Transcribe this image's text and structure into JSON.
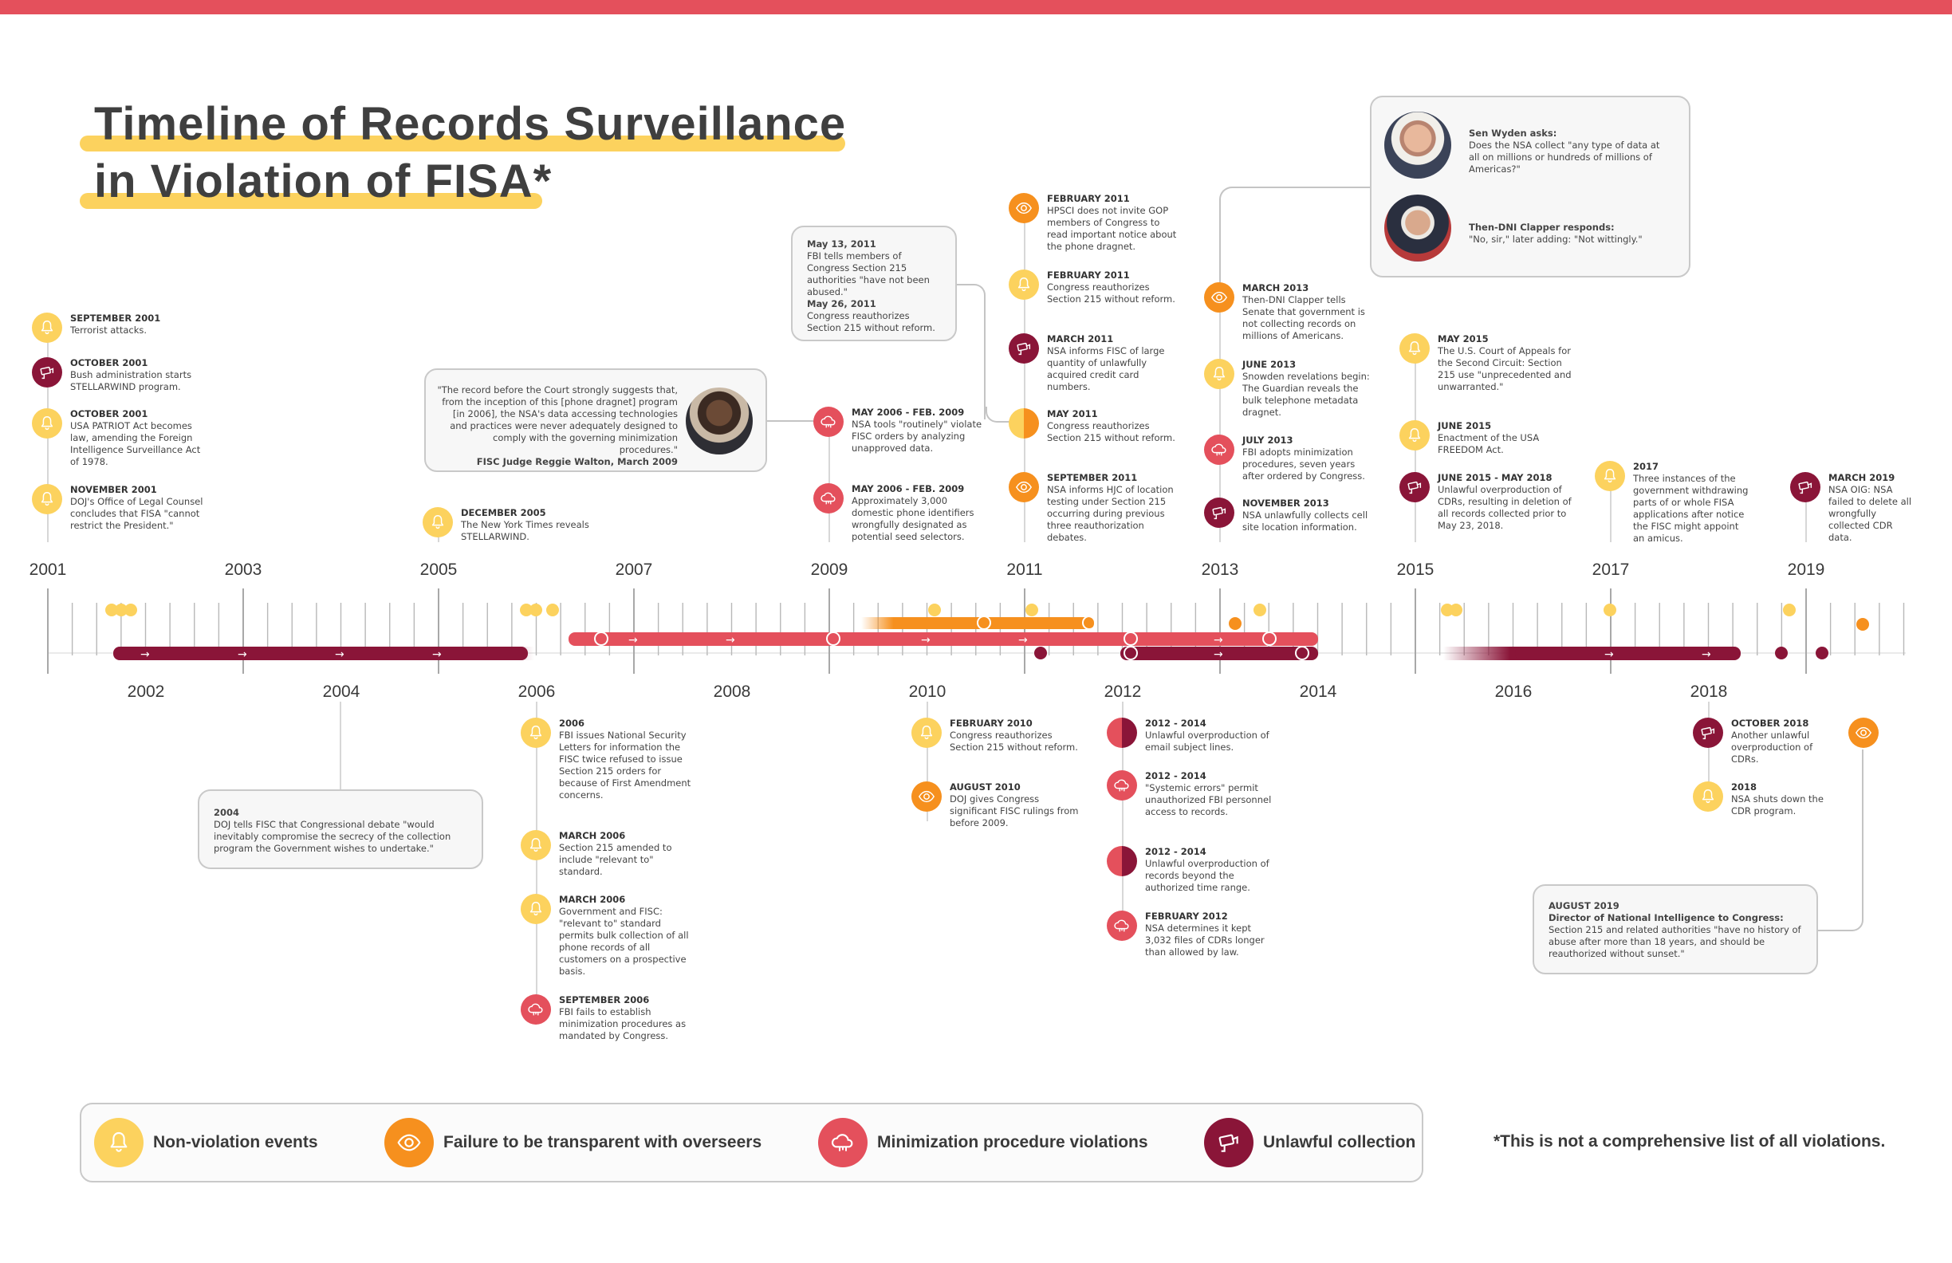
{
  "title": {
    "line1": "Timeline of Records Surveillance",
    "line2": "in Violation of FISA*"
  },
  "colors": {
    "non_violation": "#fcd25e",
    "transparency": "#f6901e",
    "minimization": "#e4505c",
    "unlawful": "#8a1538",
    "accent_top": "#e4505c"
  },
  "years_top": [
    "2001",
    "2003",
    "2005",
    "2007",
    "2009",
    "2011",
    "2013",
    "2015",
    "2017",
    "2019"
  ],
  "years_bottom": [
    "2002",
    "2004",
    "2006",
    "2008",
    "2010",
    "2012",
    "2014",
    "2016",
    "2018"
  ],
  "events_top": [
    {
      "type": "non-violation",
      "date": "SEPTEMBER 2001",
      "text": "Terrorist attacks."
    },
    {
      "type": "unlawful",
      "date": "OCTOBER 2001",
      "text": "Bush administration starts STELLARWIND program."
    },
    {
      "type": "non-violation",
      "date": "OCTOBER 2001",
      "text": "USA PATRIOT Act becomes law, amending the Foreign Intelligence Surveillance Act of 1978."
    },
    {
      "type": "non-violation",
      "date": "NOVEMBER 2001",
      "text": "DOJ's Office of Legal Counsel concludes that FISA \"cannot restrict the President.\""
    },
    {
      "type": "non-violation",
      "date": "DECEMBER 2005",
      "text": "The New York Times reveals STELLARWIND."
    },
    {
      "type": "minimization",
      "date": "MAY 2006 - FEB. 2009",
      "text": "NSA tools \"routinely\" violate FISC orders by analyzing unapproved data."
    },
    {
      "type": "minimization",
      "date": "MAY 2006 - FEB. 2009",
      "text": "Approximately 3,000 domestic phone identifiers wrongfully designated as potential seed selectors."
    },
    {
      "type": "transparency",
      "date": "FEBRUARY 2011",
      "text": "HPSCI does not invite GOP members of Congress to read important notice about the phone dragnet."
    },
    {
      "type": "non-violation",
      "date": "FEBRUARY 2011",
      "text": "Congress reauthorizes Section 215 without reform."
    },
    {
      "type": "unlawful",
      "date": "MARCH 2011",
      "text": "NSA informs FISC of large quantity of unlawfully acquired credit card numbers."
    },
    {
      "type": "half",
      "date": "MAY 2011",
      "text": "Congress reauthorizes Section 215 without reform."
    },
    {
      "type": "transparency",
      "date": "SEPTEMBER 2011",
      "text": "NSA informs HJC of location testing under Section 215 occurring during previous three reauthorization debates."
    },
    {
      "type": "transparency",
      "date": "MARCH 2013",
      "text": "Then-DNI Clapper tells Senate that government is not collecting records on millions of Americans."
    },
    {
      "type": "non-violation",
      "date": "JUNE 2013",
      "text": "Snowden revelations begin: The Guardian reveals the bulk telephone metadata dragnet."
    },
    {
      "type": "minimization",
      "date": "JULY 2013",
      "text": "FBI adopts minimization procedures, seven years after ordered by Congress."
    },
    {
      "type": "unlawful",
      "date": "NOVEMBER 2013",
      "text": "NSA unlawfully collects cell site location information."
    },
    {
      "type": "non-violation",
      "date": "MAY 2015",
      "text": "The U.S. Court of Appeals for the Second Circuit: Section 215 use \"unprecedented and unwarranted.\""
    },
    {
      "type": "non-violation",
      "date": "JUNE 2015",
      "text": "Enactment of the USA FREEDOM Act."
    },
    {
      "type": "unlawful",
      "date": "JUNE 2015 - MAY 2018",
      "text": "Unlawful overproduction of CDRs, resulting in deletion of all records collected prior to May 23, 2018."
    },
    {
      "type": "non-violation",
      "date": "2017",
      "text": "Three instances of the government withdrawing parts of or whole FISA applications after notice the FISC might appoint an amicus."
    },
    {
      "type": "unlawful",
      "date": "MARCH 2019",
      "text": "NSA OIG: NSA failed to delete all wrongfully collected CDR data."
    }
  ],
  "events_bottom": [
    {
      "type": "non-violation",
      "date": "2006",
      "text": "FBI issues National Security Letters for information the FISC twice refused to issue Section 215 orders for because of First Amendment concerns."
    },
    {
      "type": "non-violation",
      "date": "MARCH 2006",
      "text": "Section 215 amended to include \"relevant to\" standard."
    },
    {
      "type": "non-violation",
      "date": "MARCH 2006",
      "text": "Government and FISC: \"relevant to\" standard permits bulk collection of all phone records of all customers on a prospective basis."
    },
    {
      "type": "minimization",
      "date": "SEPTEMBER 2006",
      "text": "FBI fails to establish minimization procedures as mandated by Congress."
    },
    {
      "type": "non-violation",
      "date": "FEBRUARY 2010",
      "text": "Congress reauthorizes Section 215 without reform."
    },
    {
      "type": "transparency",
      "date": "AUGUST 2010",
      "text": "DOJ gives Congress significant FISC rulings from before 2009."
    },
    {
      "type": "half-unlawful",
      "date": "2012 - 2014",
      "text": "Unlawful overproduction of email subject lines."
    },
    {
      "type": "minimization",
      "date": "2012 - 2014",
      "text": "\"Systemic errors\" permit unauthorized FBI personnel access to records."
    },
    {
      "type": "half-unlawful",
      "date": "2012 - 2014",
      "text": "Unlawful overproduction of records beyond the authorized time range."
    },
    {
      "type": "minimization",
      "date": "FEBRUARY 2012",
      "text": "NSA determines it kept 3,032 files of CDRs longer than allowed by law."
    },
    {
      "type": "unlawful",
      "date": "OCTOBER 2018",
      "text": "Another unlawful overproduction of CDRs."
    },
    {
      "type": "non-violation",
      "date": "2018",
      "text": "NSA shuts down the CDR program."
    }
  ],
  "boxes": {
    "walton_quote": "\"The record before the Court strongly suggests that, from the inception of this [phone dragnet] program [in 2006], the NSA's data accessing technologies and practices were never adequately designed to comply with the governing minimization procedures.\"",
    "walton_attrib": "FISC Judge Reggie Walton, March 2009",
    "may2011_d1": "May 13, 2011",
    "may2011_t1": "FBI tells members of Congress Section 215 authorities \"have not been abused.\"",
    "may2011_d2": "May 26, 2011",
    "may2011_t2": "Congress reauthorizes Section 215 without reform.",
    "wyden_head": "Sen Wyden asks:",
    "wyden_text": "Does the NSA collect \"any type of data at all on millions or hundreds of millions of Americas?\"",
    "clapper_head": "Then-DNI Clapper responds:",
    "clapper_text": "\"No, sir,\" later adding: \"Not wittingly.\"",
    "box2004_date": "2004",
    "box2004_text": "DOJ tells FISC that Congressional debate \"would inevitably compromise the secrecy of the collection program the Government wishes to undertake.\"",
    "aug2019_date": "AUGUST 2019",
    "aug2019_head": "Director of National Intelligence to Congress:",
    "aug2019_text": "Section 215 and related authorities \"have no history of abuse after more than 18 years, and should be reauthorized without sunset.\""
  },
  "legend": {
    "non_violation": "Non-violation events",
    "transparency": "Failure to be transparent with overseers",
    "minimization": "Minimization procedure violations",
    "unlawful": "Unlawful collection"
  },
  "disclaimer": "*This is not a comprehensive list of all violations."
}
